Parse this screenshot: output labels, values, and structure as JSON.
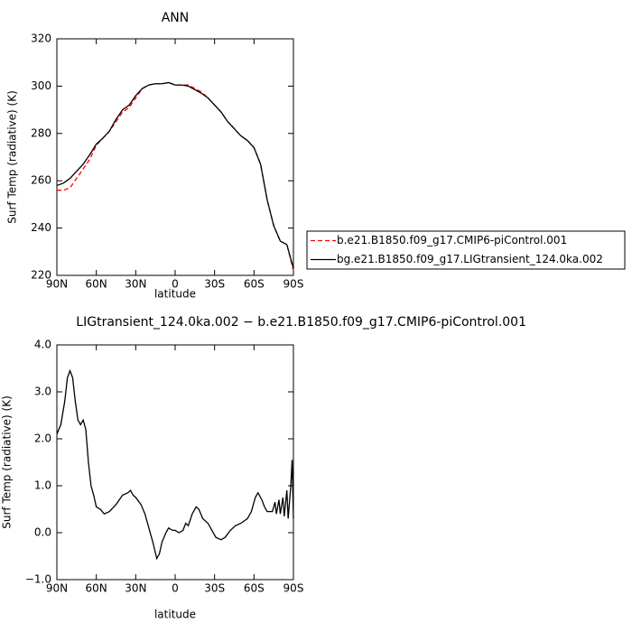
{
  "chart_data": [
    {
      "type": "line",
      "title": "ANN",
      "xlabel": "latitude",
      "ylabel": "Surf Temp (radiative) (K)",
      "x": [
        90,
        85,
        80,
        75,
        70,
        65,
        60,
        55,
        50,
        45,
        40,
        35,
        30,
        25,
        20,
        15,
        10,
        5,
        0,
        -5,
        -10,
        -15,
        -20,
        -25,
        -30,
        -35,
        -40,
        -45,
        -50,
        -55,
        -60,
        -65,
        -70,
        -75,
        -80,
        -85,
        -90
      ],
      "series": [
        {
          "name": "b.e21.B1850.f09_g17.CMIP6-piControl.001",
          "color": "#ff0000",
          "line_style": "dashed",
          "values": [
            256,
            256,
            257,
            261,
            265,
            269,
            275,
            278,
            281,
            285,
            289,
            291,
            295,
            299,
            300.5,
            301,
            301,
            301.5,
            300.5,
            300.5,
            300.5,
            299,
            297.5,
            295,
            292,
            289,
            285,
            282,
            279,
            277,
            274,
            267,
            252,
            241,
            234.5,
            233,
            222
          ]
        },
        {
          "name": "bg.e21.B1850.f09_g17.LIGtransient_124.0ka.002",
          "color": "#000000",
          "line_style": "solid",
          "values": [
            258,
            259,
            261,
            264,
            267,
            271,
            275.5,
            278,
            281,
            286,
            290,
            292,
            296,
            299,
            300.5,
            301,
            301,
            301.5,
            300.5,
            300.5,
            300,
            298.5,
            297,
            295,
            292,
            289,
            285,
            282,
            279,
            277,
            274,
            267,
            252,
            241,
            234.5,
            233,
            223
          ]
        }
      ],
      "xlim": [
        90,
        -90
      ],
      "xticks": [
        {
          "value": 90,
          "label": "90N"
        },
        {
          "value": 60,
          "label": "60N"
        },
        {
          "value": 30,
          "label": "30N"
        },
        0,
        {
          "value": -30,
          "label": "30S"
        },
        {
          "value": -60,
          "label": "60S"
        },
        {
          "value": -90,
          "label": "90S"
        }
      ],
      "ylim": [
        220,
        320
      ],
      "yticks": [
        220,
        240,
        260,
        280,
        300,
        320
      ],
      "legend": "right"
    },
    {
      "type": "line",
      "title": "LIGtransient_124.0ka.002 − b.e21.B1850.f09_g17.CMIP6-piControl.001",
      "xlabel": "latitude",
      "ylabel": "Surf Temp (radiative) (K)",
      "color": "#000000",
      "x": [
        90,
        87,
        84,
        82,
        80,
        78,
        76,
        74,
        72,
        70,
        68,
        66,
        64,
        62,
        60,
        57,
        54,
        50,
        45,
        40,
        36,
        34,
        32,
        30,
        26,
        23,
        20,
        17,
        14,
        12,
        10,
        7,
        5,
        2,
        0,
        -3,
        -6,
        -8,
        -10,
        -13,
        -16,
        -18,
        -21,
        -25,
        -28,
        -31,
        -35,
        -38,
        -42,
        -46,
        -50,
        -55,
        -58,
        -61,
        -63,
        -66,
        -68,
        -70,
        -74,
        -76,
        -77,
        -79,
        -80,
        -82,
        -83,
        -85,
        -86,
        -88,
        -89,
        -90
      ],
      "values": [
        2.1,
        2.3,
        2.8,
        3.3,
        3.45,
        3.3,
        2.8,
        2.4,
        2.3,
        2.4,
        2.2,
        1.5,
        1.0,
        0.8,
        0.55,
        0.5,
        0.4,
        0.45,
        0.6,
        0.8,
        0.85,
        0.9,
        0.8,
        0.75,
        0.6,
        0.4,
        0.1,
        -0.2,
        -0.55,
        -0.45,
        -0.2,
        0.0,
        0.1,
        0.05,
        0.05,
        0.0,
        0.05,
        0.2,
        0.15,
        0.4,
        0.55,
        0.5,
        0.3,
        0.2,
        0.05,
        -0.1,
        -0.15,
        -0.1,
        0.05,
        0.15,
        0.2,
        0.3,
        0.45,
        0.75,
        0.85,
        0.7,
        0.55,
        0.45,
        0.45,
        0.65,
        0.4,
        0.7,
        0.4,
        0.75,
        0.35,
        0.9,
        0.3,
        1.0,
        1.55,
        0.3
      ],
      "xlim": [
        90,
        -90
      ],
      "xticks": [
        {
          "value": 90,
          "label": "90N"
        },
        {
          "value": 60,
          "label": "60N"
        },
        {
          "value": 30,
          "label": "30N"
        },
        0,
        {
          "value": -30,
          "label": "30S"
        },
        {
          "value": -60,
          "label": "60S"
        },
        {
          "value": -90,
          "label": "90S"
        }
      ],
      "ylim": [
        -1,
        4
      ],
      "yticks": [
        {
          "value": -1,
          "label": "−1.0"
        },
        {
          "value": 0,
          "label": "0.0"
        },
        {
          "value": 1,
          "label": "1.0"
        },
        {
          "value": 2,
          "label": "2.0"
        },
        {
          "value": 3,
          "label": "3.0"
        },
        {
          "value": 4,
          "label": "4.0"
        }
      ]
    }
  ]
}
